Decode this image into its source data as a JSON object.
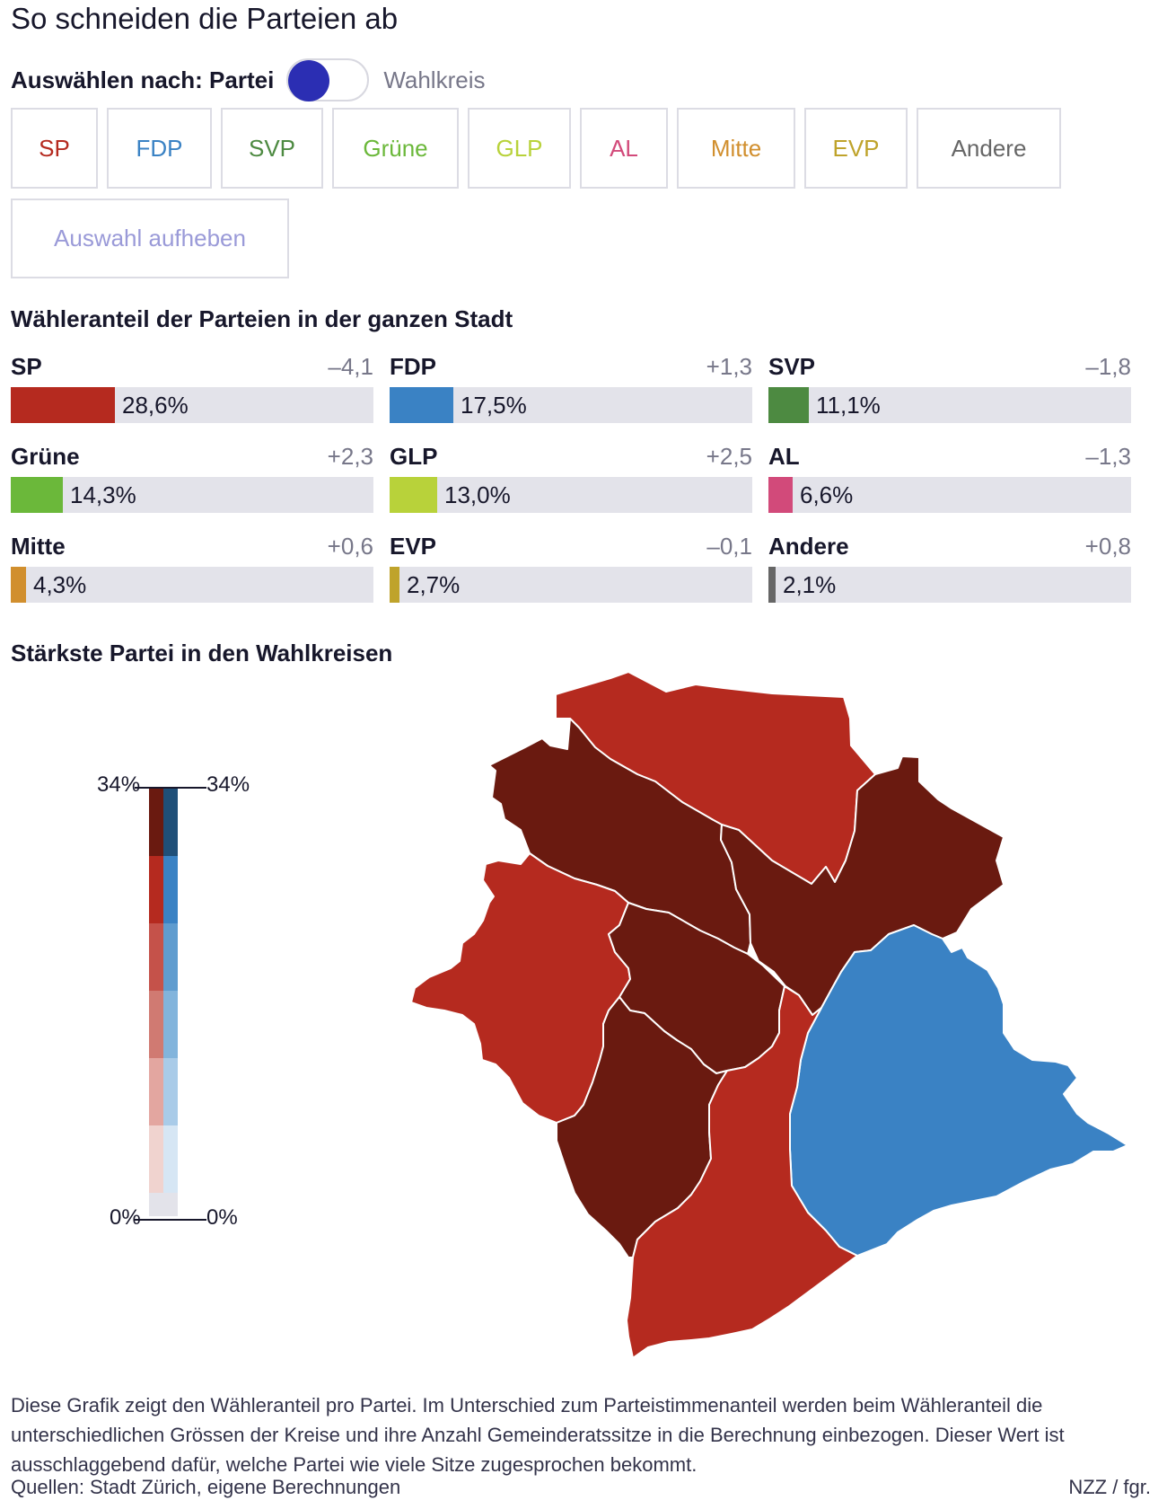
{
  "title": "So schneiden die Parteien ab",
  "toggle": {
    "label": "Auswählen nach: Partei",
    "alt_label": "Wahlkreis"
  },
  "party_buttons": [
    {
      "label": "SP",
      "color": "#b52a1f"
    },
    {
      "label": "FDP",
      "color": "#3a82c4"
    },
    {
      "label": "SVP",
      "color": "#4d8a41"
    },
    {
      "label": "Grüne",
      "color": "#6bb83a"
    },
    {
      "label": "GLP",
      "color": "#b8d23a"
    },
    {
      "label": "AL",
      "color": "#d24a7a"
    },
    {
      "label": "Mitte",
      "color": "#d18f2e"
    },
    {
      "label": "EVP",
      "color": "#bfa32b"
    },
    {
      "label": "Andere",
      "color": "#666666"
    }
  ],
  "clear_button": "Auswahl aufheben",
  "share_section_title": "Wähleranteil der Parteien in der ganzen Stadt",
  "shares": [
    {
      "party": "SP",
      "value": "28,6%",
      "share": 28.6,
      "diff": "–4,1",
      "color": "#b52a1f"
    },
    {
      "party": "FDP",
      "value": "17,5%",
      "share": 17.5,
      "diff": "+1,3",
      "color": "#3a82c4"
    },
    {
      "party": "SVP",
      "value": "11,1%",
      "share": 11.1,
      "diff": "–1,8",
      "color": "#4d8a41"
    },
    {
      "party": "Grüne",
      "value": "14,3%",
      "share": 14.3,
      "diff": "+2,3",
      "color": "#6bb83a"
    },
    {
      "party": "GLP",
      "value": "13,0%",
      "share": 13.0,
      "diff": "+2,5",
      "color": "#b8d23a"
    },
    {
      "party": "AL",
      "value": "6,6%",
      "share": 6.6,
      "diff": "–1,3",
      "color": "#d24a7a"
    },
    {
      "party": "Mitte",
      "value": "4,3%",
      "share": 4.3,
      "diff": "+0,6",
      "color": "#d18f2e"
    },
    {
      "party": "EVP",
      "value": "2,7%",
      "share": 2.7,
      "diff": "–0,1",
      "color": "#bfa32b"
    },
    {
      "party": "Andere",
      "value": "2,1%",
      "share": 2.1,
      "diff": "+0,8",
      "color": "#666666"
    }
  ],
  "map_section_title": "Stärkste Partei in den Wahlkreisen",
  "legend": {
    "max_left": "34%",
    "max_right": "34%",
    "min_left": "0%",
    "min_right": "0%",
    "red_steps": [
      "#6a1a10",
      "#b52a1f",
      "#c5524a",
      "#d07a72",
      "#e3a6a0",
      "#f0d3cf"
    ],
    "blue_steps": [
      "#1f4f78",
      "#3a82c4",
      "#5f9ccf",
      "#82b4dc",
      "#a9cbe8",
      "#d6e6f4"
    ],
    "empty_color": "#e3e3ea"
  },
  "map_colors": {
    "sp_dark": "#6a1a10",
    "sp": "#b52a1f",
    "fdp": "#3a82c4",
    "border": "#ffffff"
  },
  "footnote": "Diese Grafik zeigt den Wähleranteil pro Partei. Im Unterschied zum Parteistimmenanteil werden beim Wähleranteil die unterschiedlichen Grössen der Kreise und ihre Anzahl Gemeinderatssitze in die Berechnung einbezogen. Dieser Wert ist ausschlaggebend dafür, welche Partei wie viele Sitze zugesprochen bekommt.",
  "sources": "Quellen: Stadt Zürich, eigene Berechnungen",
  "credit": "NZZ / fgr."
}
